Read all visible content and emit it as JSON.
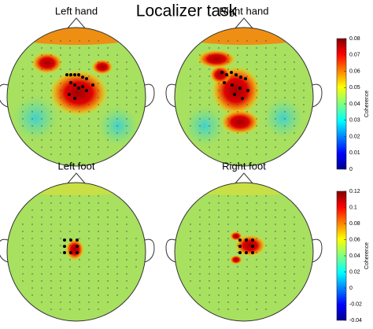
{
  "title": "Localizer task",
  "panels": [
    {
      "label": "Left hand"
    },
    {
      "label": "Right hand"
    },
    {
      "label": "Left foot"
    },
    {
      "label": "Right foot"
    }
  ],
  "colorbars": [
    {
      "label": "Coherence",
      "lim": [
        0,
        0.08
      ],
      "ticks": [
        0,
        0.01,
        0.02,
        0.03,
        0.04,
        0.05,
        0.06,
        0.07,
        0.08
      ]
    },
    {
      "label": "Coherence",
      "lim": [
        -0.04,
        0.12
      ],
      "ticks": [
        -0.04,
        -0.02,
        0,
        0.02,
        0.04,
        0.06,
        0.08,
        0.1,
        0.12
      ]
    }
  ]
}
